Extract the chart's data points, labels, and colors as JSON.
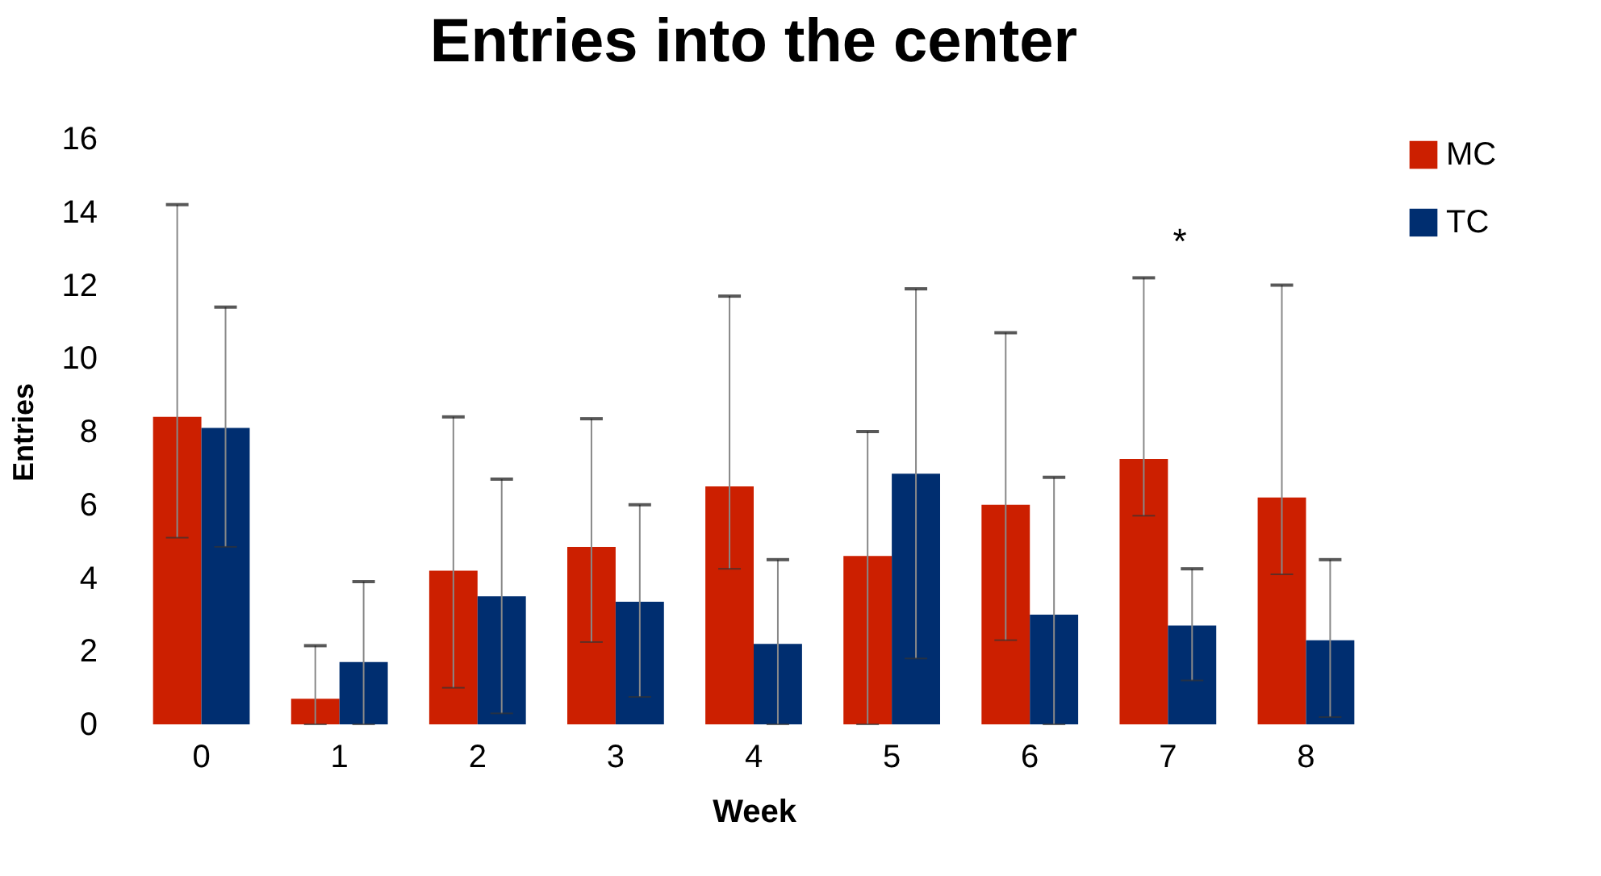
{
  "chart_data": {
    "type": "bar",
    "title": "Entries into the center",
    "xlabel": "Week",
    "ylabel": "Entries",
    "categories": [
      "0",
      "1",
      "2",
      "3",
      "4",
      "5",
      "6",
      "7",
      "8"
    ],
    "series": [
      {
        "name": "MC",
        "color": "#cc1f00",
        "values": [
          8.4,
          0.7,
          4.2,
          4.85,
          6.5,
          4.6,
          6.0,
          7.25,
          6.2
        ],
        "errors": [
          [
            5.1,
            14.2
          ],
          [
            0,
            2.15
          ],
          [
            1.0,
            8.4
          ],
          [
            2.25,
            8.35
          ],
          [
            4.25,
            11.7
          ],
          [
            0,
            8.0
          ],
          [
            2.3,
            10.7
          ],
          [
            5.7,
            12.2
          ],
          [
            4.1,
            12.0
          ]
        ]
      },
      {
        "name": "TC",
        "color": "#002e70",
        "values": [
          8.1,
          1.7,
          3.5,
          3.35,
          2.2,
          6.85,
          3.0,
          2.7,
          2.3
        ],
        "errors": [
          [
            4.85,
            11.4
          ],
          [
            0,
            3.9
          ],
          [
            0.3,
            6.7
          ],
          [
            0.75,
            6.0
          ],
          [
            0,
            4.5
          ],
          [
            1.8,
            11.9
          ],
          [
            0,
            6.75
          ],
          [
            1.2,
            4.25
          ],
          [
            0.2,
            4.5
          ]
        ]
      }
    ],
    "annotations": [
      "*"
    ],
    "ylim": [
      0,
      16
    ],
    "yticks": [
      0,
      2,
      4,
      6,
      8,
      10,
      12,
      14,
      16
    ],
    "grid": false,
    "legend": "right"
  }
}
